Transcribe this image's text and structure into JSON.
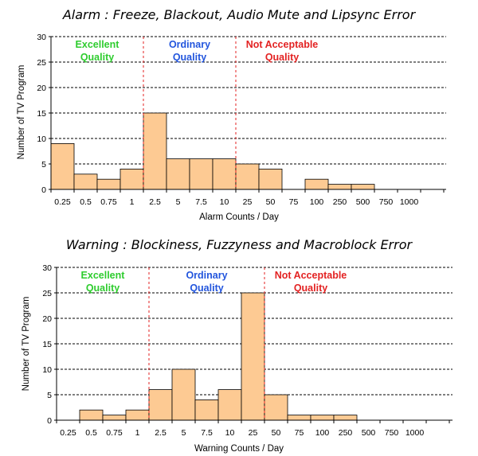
{
  "chart_data": [
    {
      "type": "bar",
      "title": "Alarm : Freeze, Blackout, Audio Mute and Lipsync Error",
      "xlabel": "Alarm Counts / Day",
      "ylabel": "Number of TV Program",
      "ylim": [
        0,
        30
      ],
      "yticks": [
        "0",
        "5",
        "10",
        "15",
        "20",
        "25",
        "30"
      ],
      "grid": "horizontal dashed",
      "categories": [
        "0.25",
        "0.5",
        "0.75",
        "1",
        "2.5",
        "5",
        "7.5",
        "10",
        "25",
        "50",
        "75",
        "100",
        "250",
        "500",
        "750",
        "1000"
      ],
      "values": [
        9,
        3,
        2,
        4,
        15,
        6,
        6,
        6,
        5,
        4,
        0,
        2,
        1,
        1,
        0,
        0
      ],
      "bar_color": "#fdca93",
      "regions": [
        {
          "label_line1": "Excellent",
          "label_line2": "Quality",
          "color": "#2ecc2e",
          "from_bin": 0,
          "to_bin": 3
        },
        {
          "label_line1": "Ordinary",
          "label_line2": "Quality",
          "color": "#2255dd",
          "from_bin": 4,
          "to_bin": 7
        },
        {
          "label_line1": "Not Acceptable",
          "label_line2": "Quality",
          "color": "#e32222",
          "from_bin": 8,
          "to_bin": 16
        }
      ],
      "divider_color": "#e32222"
    },
    {
      "type": "bar",
      "title": "Warning : Blockiness, Fuzzyness and Macroblock Error",
      "xlabel": "Warning Counts / Day",
      "ylabel": "Number of TV Program",
      "ylim": [
        0,
        30
      ],
      "yticks": [
        "0",
        "5",
        "10",
        "15",
        "20",
        "25",
        "30"
      ],
      "grid": "horizontal dashed",
      "categories": [
        "0.25",
        "0.5",
        "0.75",
        "1",
        "2.5",
        "5",
        "7.5",
        "10",
        "25",
        "50",
        "75",
        "100",
        "250",
        "500",
        "750",
        "1000"
      ],
      "values": [
        0,
        2,
        1,
        2,
        6,
        10,
        4,
        6,
        25,
        5,
        1,
        1,
        1,
        0,
        0,
        0
      ],
      "bar_color": "#fdca93",
      "regions": [
        {
          "label_line1": "Excellent",
          "label_line2": "Quality",
          "color": "#2ecc2e",
          "from_bin": 0,
          "to_bin": 3
        },
        {
          "label_line1": "Ordinary",
          "label_line2": "Quality",
          "color": "#2255dd",
          "from_bin": 4,
          "to_bin": 8
        },
        {
          "label_line1": "Not Acceptable",
          "label_line2": "Quality",
          "color": "#e32222",
          "from_bin": 9,
          "to_bin": 16
        }
      ],
      "divider_color": "#e32222"
    }
  ]
}
